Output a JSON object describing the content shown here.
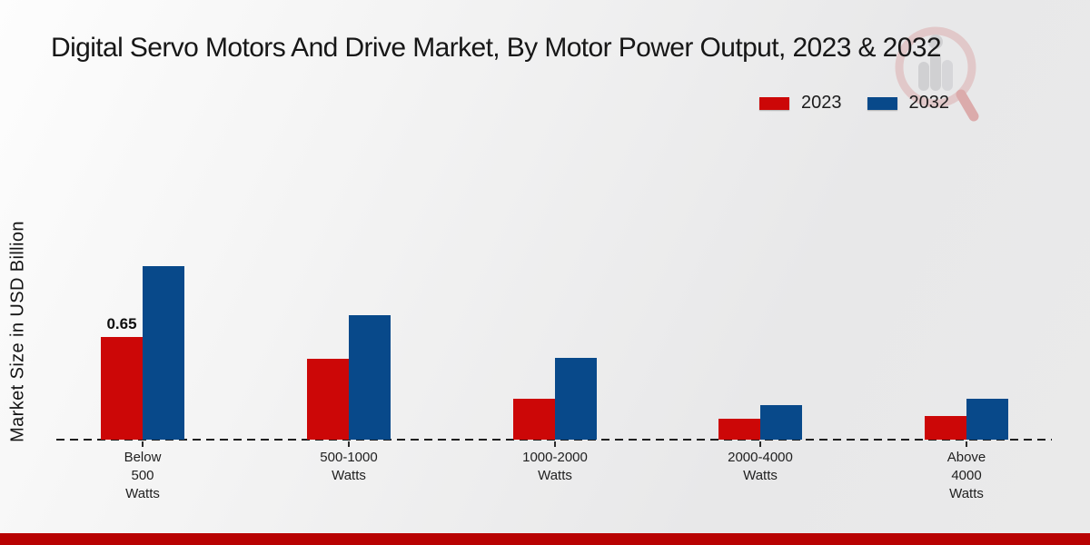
{
  "title": "Digital Servo Motors And Drive Market, By Motor Power Output, 2023 & 2032",
  "y_axis_label": "Market Size in USD Billion",
  "legend": {
    "items": [
      {
        "label": "2023"
      },
      {
        "label": "2032"
      }
    ]
  },
  "watermark_icon": "magnifier-analytics-logo",
  "footer": {
    "bar_color": "#b80202"
  },
  "chart_data": {
    "type": "bar",
    "title": "Digital Servo Motors And Drive Market, By Motor Power Output, 2023 & 2032",
    "xlabel": "",
    "ylabel": "Market Size in USD Billion",
    "categories": [
      "Below 500 Watts",
      "500-1000 Watts",
      "1000-2000 Watts",
      "2000-4000 Watts",
      "Above 4000 Watts"
    ],
    "series": [
      {
        "name": "2023",
        "color": "#cc0707",
        "values": [
          0.65,
          0.51,
          0.26,
          0.13,
          0.15
        ]
      },
      {
        "name": "2032",
        "color": "#08498a",
        "values": [
          1.1,
          0.79,
          0.52,
          0.22,
          0.26
        ]
      }
    ],
    "data_labels": [
      {
        "series": "2023",
        "category_index": 0,
        "text": "0.65"
      }
    ],
    "ylim": [
      0,
      1.2
    ],
    "grid": false,
    "y_axis_ticks_visible": false,
    "baseline_style": "dashed",
    "legend_position": "top-right"
  }
}
